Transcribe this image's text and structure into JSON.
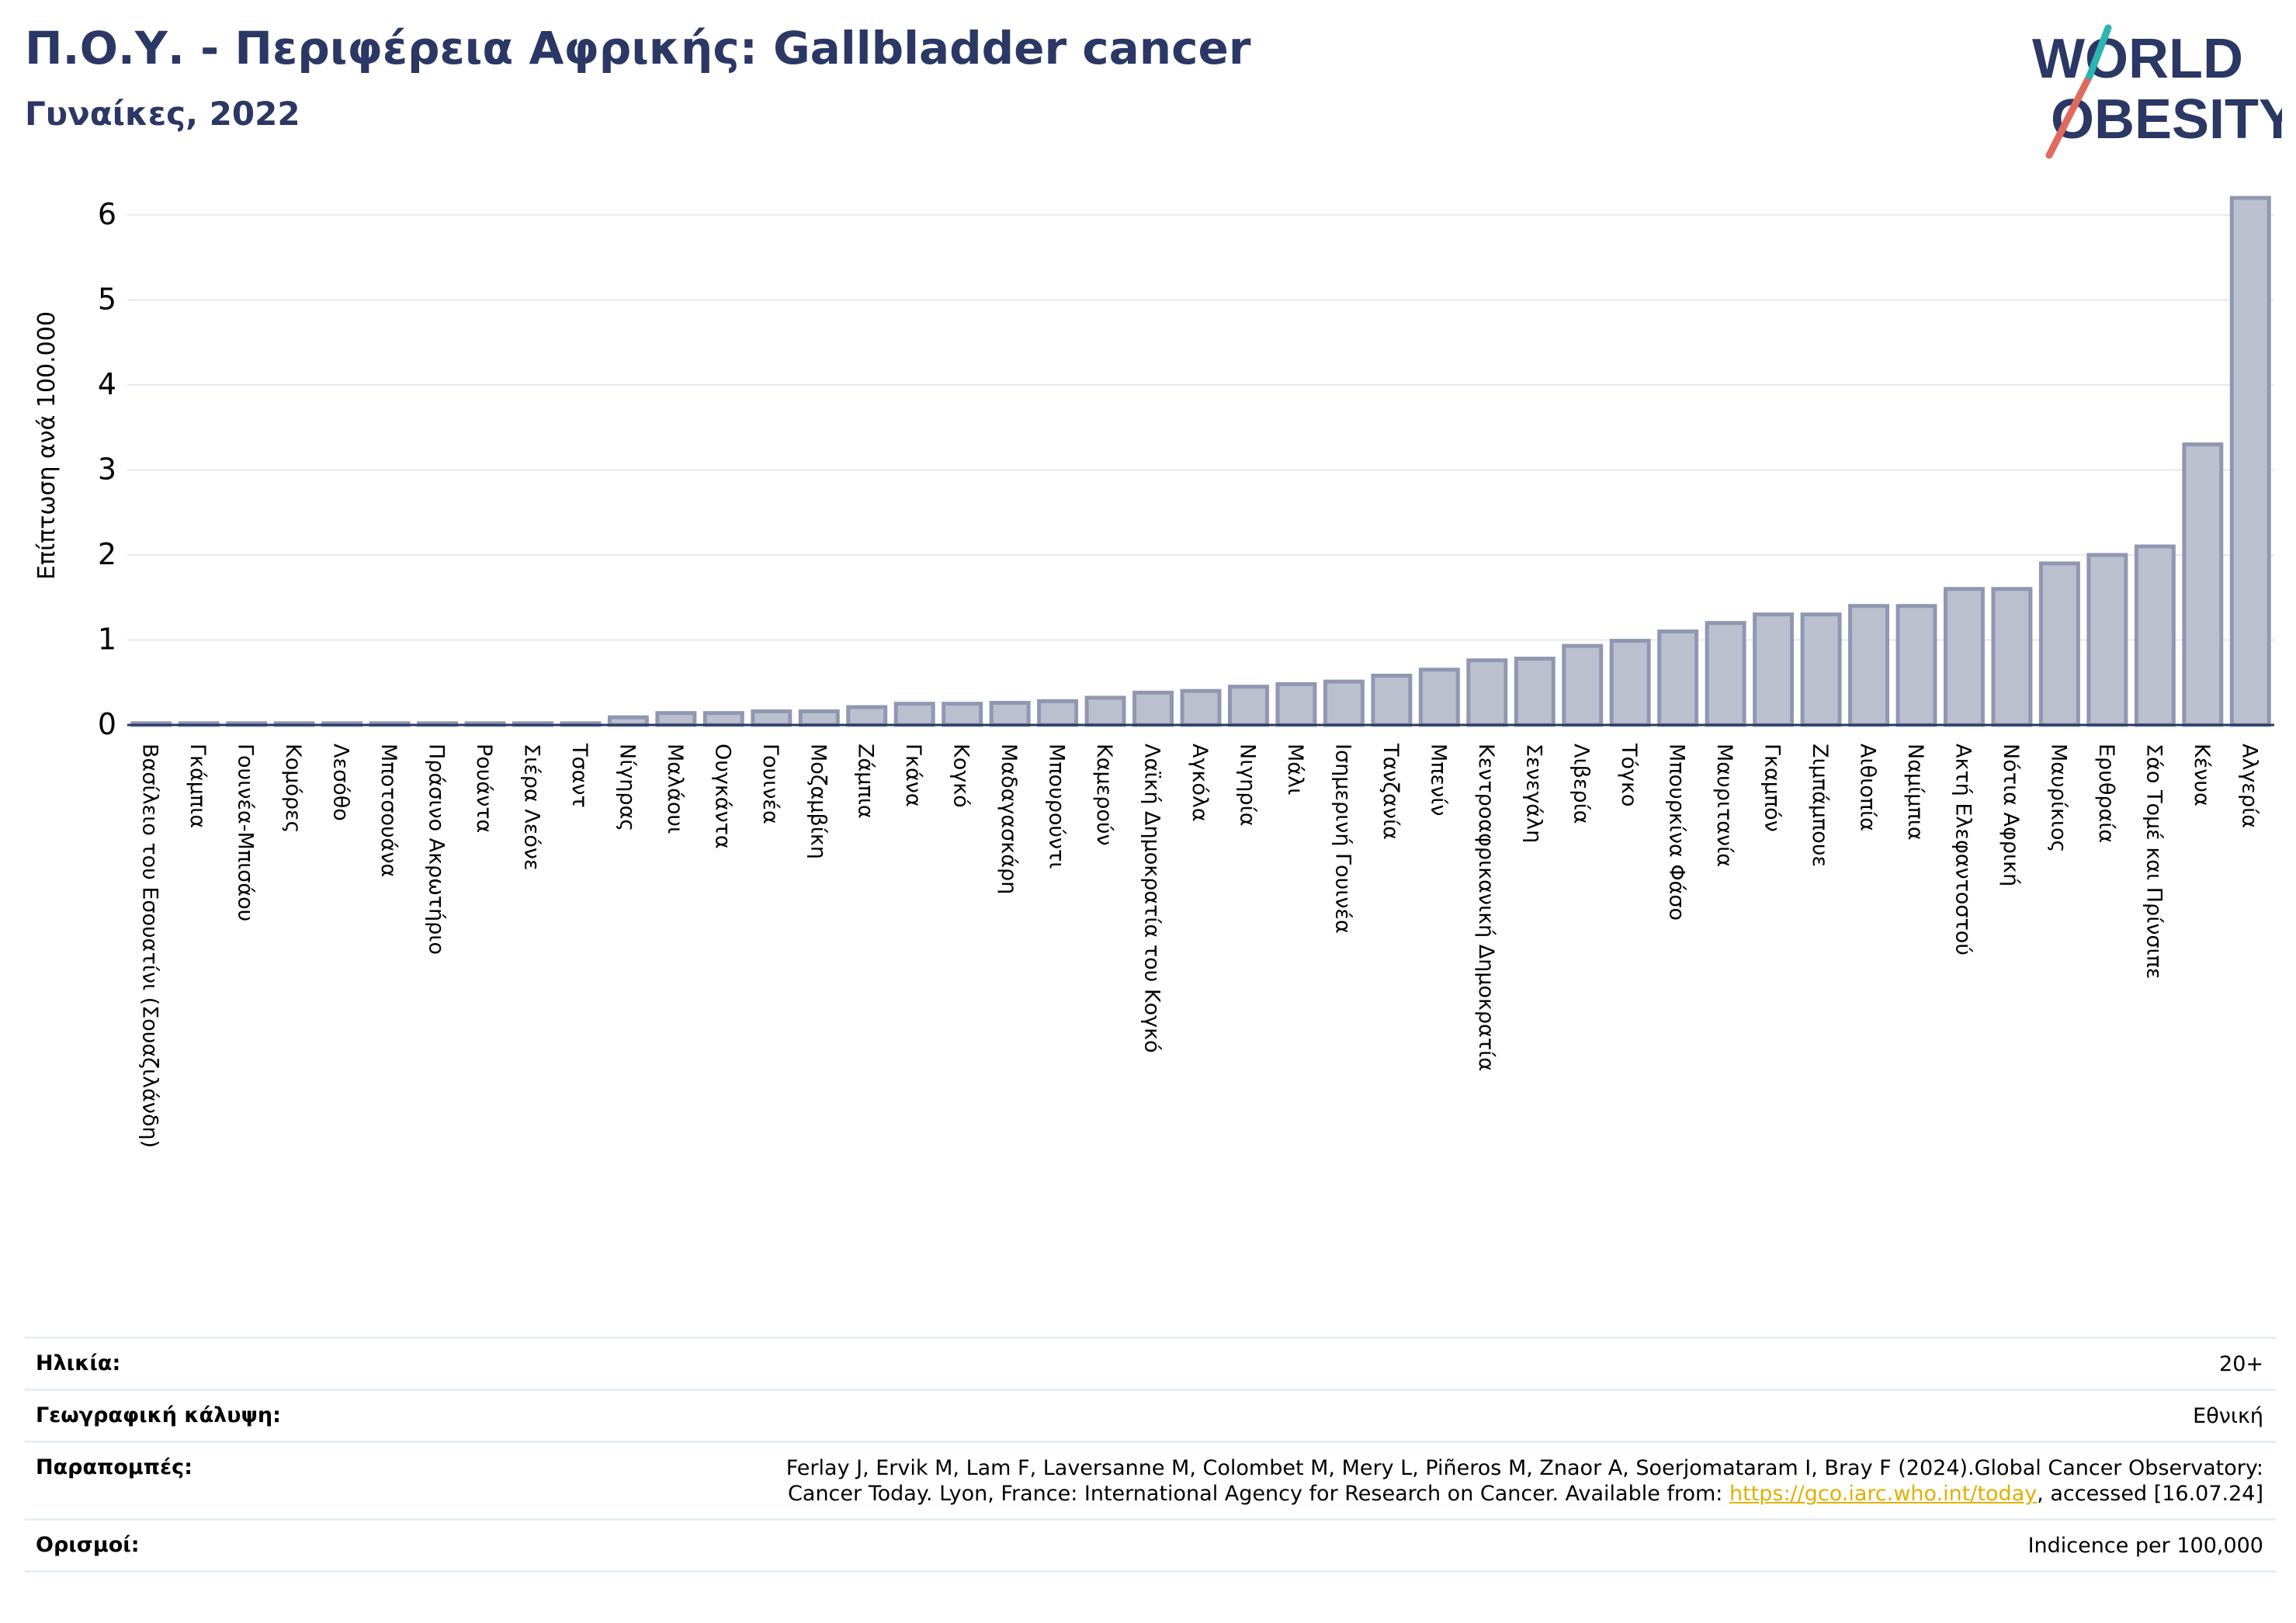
{
  "header": {
    "title": "Π.Ο.Υ. - Περιφέρεια Αφρικής: Gallbladder cancer",
    "subtitle": "Γυναίκες, 2022"
  },
  "logo": {
    "line1": "WORLD",
    "line2": "OBESITY"
  },
  "colors": {
    "bar_fill": "#bbc0cf",
    "bar_stroke": "#9097b1",
    "title": "#2b3764",
    "grid": "#e6e9ef",
    "accent_teal": "#2ab5b0",
    "accent_red": "#e06a5d"
  },
  "chart_data": {
    "type": "bar",
    "title": "Π.Ο.Υ. - Περιφέρεια Αφρικής: Gallbladder cancer",
    "subtitle": "Γυναίκες, 2022",
    "xlabel": "",
    "ylabel": "Επίπτωση ανά 100.000",
    "ylim": [
      0,
      6.3
    ],
    "yticks": [
      0,
      1,
      2,
      3,
      4,
      5,
      6
    ],
    "grid": true,
    "categories": [
      "Βασίλειο του Εσουατίνι (Σουαζιλάνδη)",
      "Γκάμπια",
      "Γουινέα-Μπισάου",
      "Κομόρες",
      "Λεσόθο",
      "Μποτσουάνα",
      "Πράσινο Ακρωτήριο",
      "Ρουάντα",
      "Σιέρα Λεόνε",
      "Τσαντ",
      "Νίγηρας",
      "Μαλάουι",
      "Ουγκάντα",
      "Γουινέα",
      "Μοζαμβίκη",
      "Ζάμπια",
      "Γκάνα",
      "Κογκό",
      "Μαδαγασκάρη",
      "Μπουρούντι",
      "Καμερούν",
      "Λαϊκή Δημοκρατία του Κογκό",
      "Αγκόλα",
      "Νιγηρία",
      "Μάλι",
      "Ισημερινή Γουινέα",
      "Τανζανία",
      "Μπενίν",
      "Κεντροαφρικανική Δημοκρατία",
      "Σενεγάλη",
      "Λιβερία",
      "Τόγκο",
      "Μπουρκίνα Φάσο",
      "Μαυριτανία",
      "Γκαμπόν",
      "Ζιμπάμπουε",
      "Αιθιοπία",
      "Ναμίμπια",
      "Ακτή Ελεφαντοστού",
      "Νότια Αφρική",
      "Μαυρίκιος",
      "Ερυθραία",
      "Σάο Τομέ και Πρίνσιπε",
      "Κένυα",
      "Αλγερία"
    ],
    "values": [
      0.02,
      0.02,
      0.02,
      0.02,
      0.02,
      0.02,
      0.02,
      0.02,
      0.02,
      0.02,
      0.09,
      0.14,
      0.14,
      0.16,
      0.16,
      0.21,
      0.25,
      0.25,
      0.26,
      0.28,
      0.32,
      0.38,
      0.4,
      0.45,
      0.48,
      0.51,
      0.58,
      0.65,
      0.76,
      0.78,
      0.93,
      0.99,
      1.1,
      1.2,
      1.3,
      1.3,
      1.4,
      1.4,
      1.6,
      1.6,
      1.9,
      2.0,
      2.1,
      3.3,
      6.2
    ]
  },
  "info": [
    {
      "label": "Ηλικία:",
      "value": "20+"
    },
    {
      "label": "Γεωγραφική κάλυψη:",
      "value": "Εθνική"
    },
    {
      "label": "Παραπομπές:",
      "value_line1": "Ferlay J, Ervik M, Lam F, Laversanne M, Colombet M, Mery L, Piñeros M, Znaor A, Soerjomataram I, Bray F (2024).Global Cancer Observatory:",
      "value_line2_pre": "Cancer Today. Lyon, France: International Agency for Research on Cancer. Available from: ",
      "link": "https://gco.iarc.who.int/today",
      "value_line2_post": ", accessed [16.07.24]"
    },
    {
      "label": "Ορισμοί:",
      "value": "Indicence per 100,000"
    }
  ]
}
